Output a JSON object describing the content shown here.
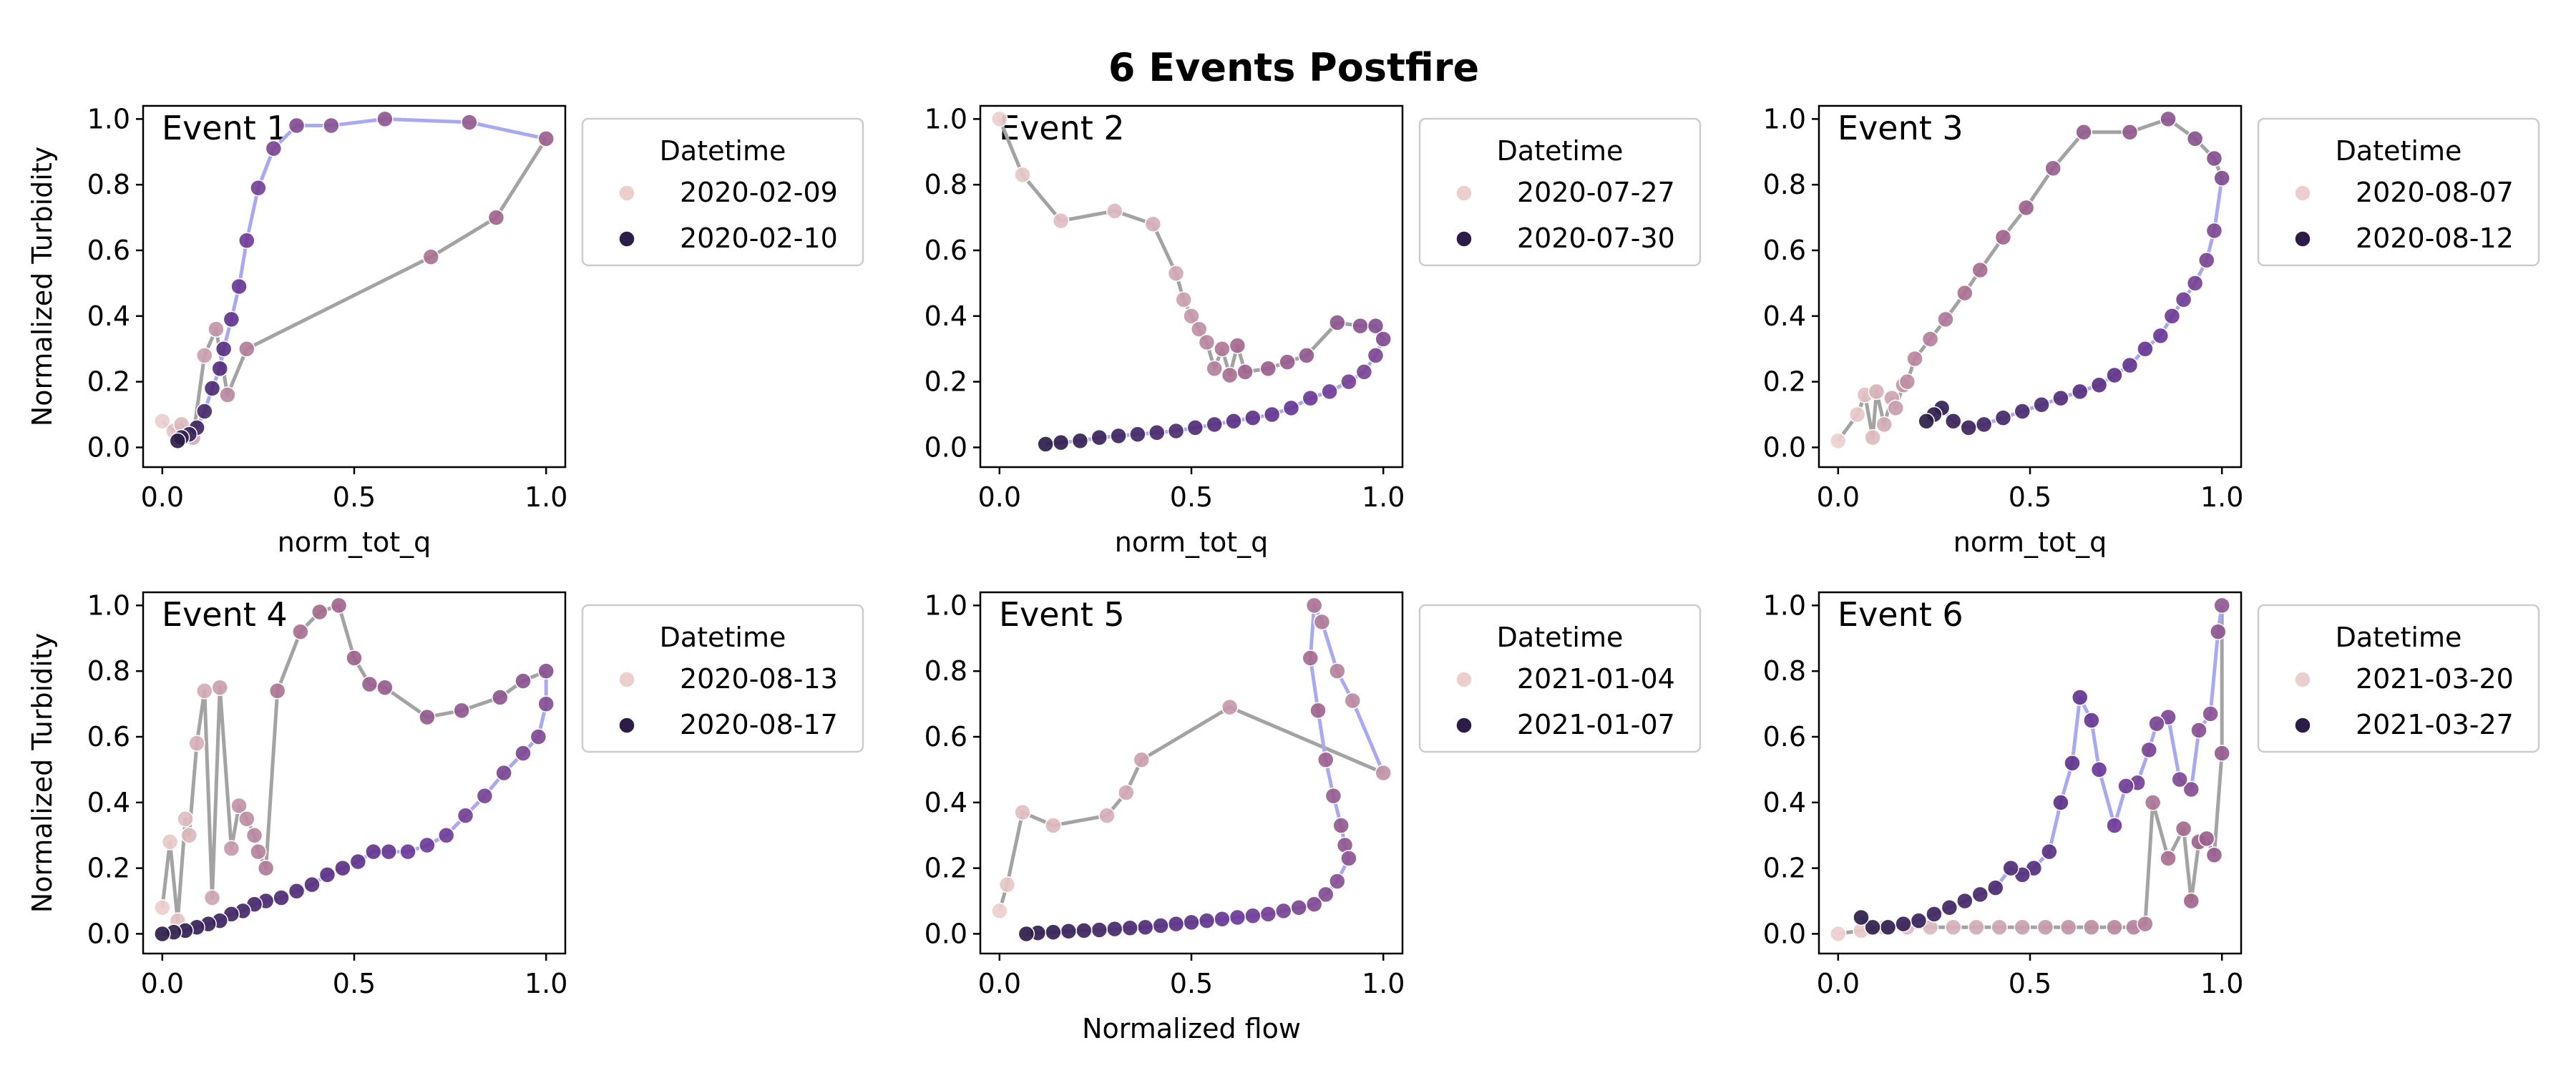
{
  "figure": {
    "title": "6 Events Postfire",
    "legend_title": "Datetime",
    "ylabel": "Normalized Turbidity",
    "xlabel_top": "norm_tot_q",
    "xlabel_bottom": "Normalized flow"
  },
  "colors": {
    "path_rising": "#a9a9f2",
    "path_falling": "#a3a3a3",
    "point_start": "#eccfcd",
    "point_mid": "#a2668c",
    "point_late": "#6a3898",
    "point_end": "#2c1d48"
  },
  "chart_data": [
    {
      "type": "scatter",
      "panel_title": "Event 1",
      "xlabel": "norm_tot_q",
      "ylabel": "Normalized Turbidity",
      "xlim": [
        -0.05,
        1.05
      ],
      "ylim": [
        -0.06,
        1.04
      ],
      "xticks": [
        "0.0",
        "0.5",
        "1.0"
      ],
      "yticks": [
        "0.0",
        "0.2",
        "0.4",
        "0.6",
        "0.8",
        "1.0"
      ],
      "legend": [
        "2020-02-09",
        "2020-02-10"
      ],
      "x": [
        0.0,
        0.03,
        0.05,
        0.08,
        0.11,
        0.14,
        0.17,
        0.22,
        0.7,
        0.87,
        1.0,
        0.8,
        0.58,
        0.44,
        0.35,
        0.29,
        0.25,
        0.22,
        0.2,
        0.18,
        0.16,
        0.15,
        0.13,
        0.11,
        0.09,
        0.07,
        0.05,
        0.04
      ],
      "y": [
        0.08,
        0.05,
        0.07,
        0.03,
        0.28,
        0.36,
        0.16,
        0.3,
        0.58,
        0.7,
        0.94,
        0.99,
        1.0,
        0.98,
        0.98,
        0.91,
        0.79,
        0.63,
        0.49,
        0.39,
        0.3,
        0.24,
        0.18,
        0.11,
        0.06,
        0.04,
        0.03,
        0.02
      ],
      "turn": 10
    },
    {
      "type": "scatter",
      "panel_title": "Event 2",
      "xlabel": "norm_tot_q",
      "ylabel": "",
      "xlim": [
        -0.05,
        1.05
      ],
      "ylim": [
        -0.06,
        1.04
      ],
      "xticks": [
        "0.0",
        "0.5",
        "1.0"
      ],
      "yticks": [
        "0.0",
        "0.2",
        "0.4",
        "0.6",
        "0.8",
        "1.0"
      ],
      "legend": [
        "2020-07-27",
        "2020-07-30"
      ],
      "x": [
        0.0,
        0.06,
        0.16,
        0.3,
        0.4,
        0.46,
        0.48,
        0.5,
        0.52,
        0.54,
        0.56,
        0.58,
        0.6,
        0.62,
        0.64,
        0.7,
        0.75,
        0.8,
        0.88,
        0.94,
        0.98,
        1.0,
        0.98,
        0.95,
        0.91,
        0.86,
        0.81,
        0.76,
        0.71,
        0.66,
        0.61,
        0.56,
        0.51,
        0.46,
        0.41,
        0.36,
        0.31,
        0.26,
        0.21,
        0.16,
        0.12
      ],
      "y": [
        1.0,
        0.83,
        0.69,
        0.72,
        0.68,
        0.53,
        0.45,
        0.4,
        0.36,
        0.32,
        0.24,
        0.3,
        0.22,
        0.31,
        0.23,
        0.24,
        0.26,
        0.28,
        0.38,
        0.37,
        0.37,
        0.33,
        0.28,
        0.23,
        0.2,
        0.17,
        0.15,
        0.12,
        0.1,
        0.09,
        0.08,
        0.07,
        0.06,
        0.05,
        0.045,
        0.04,
        0.035,
        0.03,
        0.02,
        0.015,
        0.01
      ],
      "turn": 21
    },
    {
      "type": "scatter",
      "panel_title": "Event 3",
      "xlabel": "norm_tot_q",
      "ylabel": "",
      "xlim": [
        -0.05,
        1.05
      ],
      "ylim": [
        -0.06,
        1.04
      ],
      "xticks": [
        "0.0",
        "0.5",
        "1.0"
      ],
      "yticks": [
        "0.0",
        "0.2",
        "0.4",
        "0.6",
        "0.8",
        "1.0"
      ],
      "legend": [
        "2020-08-07",
        "2020-08-12"
      ],
      "x": [
        0.0,
        0.05,
        0.07,
        0.09,
        0.1,
        0.12,
        0.14,
        0.15,
        0.17,
        0.18,
        0.2,
        0.24,
        0.28,
        0.33,
        0.37,
        0.43,
        0.49,
        0.56,
        0.64,
        0.76,
        0.86,
        0.93,
        0.98,
        1.0,
        0.98,
        0.96,
        0.93,
        0.9,
        0.87,
        0.84,
        0.8,
        0.76,
        0.72,
        0.68,
        0.63,
        0.58,
        0.53,
        0.48,
        0.43,
        0.38,
        0.34,
        0.3,
        0.27,
        0.25,
        0.23
      ],
      "y": [
        0.02,
        0.1,
        0.16,
        0.03,
        0.17,
        0.07,
        0.15,
        0.12,
        0.19,
        0.2,
        0.27,
        0.33,
        0.39,
        0.47,
        0.54,
        0.64,
        0.73,
        0.85,
        0.96,
        0.96,
        1.0,
        0.94,
        0.88,
        0.82,
        0.66,
        0.57,
        0.5,
        0.45,
        0.4,
        0.34,
        0.3,
        0.25,
        0.22,
        0.19,
        0.17,
        0.15,
        0.13,
        0.11,
        0.09,
        0.07,
        0.06,
        0.08,
        0.12,
        0.1,
        0.08
      ],
      "turn": 23
    },
    {
      "type": "scatter",
      "panel_title": "Event 4",
      "xlabel": "",
      "ylabel": "Normalized Turbidity",
      "xlim": [
        -0.05,
        1.05
      ],
      "ylim": [
        -0.06,
        1.04
      ],
      "xticks": [
        "0.0",
        "0.5",
        "1.0"
      ],
      "yticks": [
        "0.0",
        "0.2",
        "0.4",
        "0.6",
        "0.8",
        "1.0"
      ],
      "legend": [
        "2020-08-13",
        "2020-08-17"
      ],
      "x": [
        0.0,
        0.02,
        0.04,
        0.06,
        0.07,
        0.09,
        0.11,
        0.13,
        0.15,
        0.18,
        0.2,
        0.22,
        0.24,
        0.25,
        0.27,
        0.3,
        0.36,
        0.41,
        0.46,
        0.5,
        0.54,
        0.58,
        0.69,
        0.78,
        0.88,
        0.94,
        1.0,
        1.0,
        0.98,
        0.94,
        0.89,
        0.84,
        0.79,
        0.74,
        0.69,
        0.64,
        0.59,
        0.55,
        0.51,
        0.47,
        0.43,
        0.39,
        0.35,
        0.31,
        0.27,
        0.24,
        0.21,
        0.18,
        0.15,
        0.12,
        0.09,
        0.06,
        0.03,
        0.0
      ],
      "y": [
        0.08,
        0.28,
        0.04,
        0.35,
        0.3,
        0.58,
        0.74,
        0.11,
        0.75,
        0.26,
        0.39,
        0.35,
        0.3,
        0.25,
        0.2,
        0.74,
        0.92,
        0.98,
        1.0,
        0.84,
        0.76,
        0.75,
        0.66,
        0.68,
        0.72,
        0.77,
        0.8,
        0.7,
        0.6,
        0.55,
        0.49,
        0.42,
        0.36,
        0.3,
        0.27,
        0.25,
        0.25,
        0.25,
        0.22,
        0.2,
        0.18,
        0.15,
        0.13,
        0.11,
        0.1,
        0.09,
        0.07,
        0.06,
        0.04,
        0.03,
        0.02,
        0.01,
        0.005,
        0.0
      ],
      "turn": 26
    },
    {
      "type": "scatter",
      "panel_title": "Event 5",
      "xlabel": "Normalized flow",
      "ylabel": "",
      "xlim": [
        -0.05,
        1.05
      ],
      "ylim": [
        -0.06,
        1.04
      ],
      "xticks": [
        "0.0",
        "0.5",
        "1.0"
      ],
      "yticks": [
        "0.0",
        "0.2",
        "0.4",
        "0.6",
        "0.8",
        "1.0"
      ],
      "legend": [
        "2021-01-04",
        "2021-01-07"
      ],
      "x": [
        0.0,
        0.02,
        0.06,
        0.14,
        0.28,
        0.33,
        0.37,
        0.6,
        1.0,
        0.92,
        0.88,
        0.84,
        0.82,
        0.81,
        0.83,
        0.85,
        0.87,
        0.89,
        0.9,
        0.91,
        0.88,
        0.85,
        0.82,
        0.78,
        0.74,
        0.7,
        0.66,
        0.62,
        0.58,
        0.54,
        0.5,
        0.46,
        0.42,
        0.38,
        0.34,
        0.3,
        0.26,
        0.22,
        0.18,
        0.14,
        0.1,
        0.07
      ],
      "y": [
        0.07,
        0.15,
        0.37,
        0.33,
        0.36,
        0.43,
        0.53,
        0.69,
        0.49,
        0.71,
        0.8,
        0.95,
        1.0,
        0.84,
        0.68,
        0.53,
        0.42,
        0.33,
        0.27,
        0.23,
        0.16,
        0.12,
        0.09,
        0.08,
        0.07,
        0.06,
        0.055,
        0.05,
        0.045,
        0.04,
        0.035,
        0.03,
        0.025,
        0.02,
        0.018,
        0.015,
        0.012,
        0.01,
        0.008,
        0.005,
        0.003,
        0.0
      ],
      "turn": 8
    },
    {
      "type": "scatter",
      "panel_title": "Event 6",
      "xlabel": "",
      "ylabel": "",
      "xlim": [
        -0.05,
        1.05
      ],
      "ylim": [
        -0.06,
        1.04
      ],
      "xticks": [
        "0.0",
        "0.5",
        "1.0"
      ],
      "yticks": [
        "0.0",
        "0.2",
        "0.4",
        "0.6",
        "0.8",
        "1.0"
      ],
      "legend": [
        "2021-03-20",
        "2021-03-27"
      ],
      "x": [
        0.0,
        0.06,
        0.12,
        0.18,
        0.24,
        0.3,
        0.36,
        0.42,
        0.48,
        0.54,
        0.6,
        0.66,
        0.72,
        0.77,
        0.8,
        0.82,
        0.86,
        0.9,
        0.92,
        0.94,
        0.96,
        0.98,
        1.0,
        1.0,
        0.99,
        0.97,
        0.94,
        0.92,
        0.89,
        0.86,
        0.83,
        0.81,
        0.78,
        0.75,
        0.72,
        0.68,
        0.66,
        0.63,
        0.61,
        0.58,
        0.55,
        0.51,
        0.48,
        0.45,
        0.41,
        0.37,
        0.33,
        0.29,
        0.25,
        0.21,
        0.17,
        0.13,
        0.09,
        0.06
      ],
      "y": [
        0.0,
        0.01,
        0.02,
        0.02,
        0.02,
        0.02,
        0.02,
        0.02,
        0.02,
        0.02,
        0.02,
        0.02,
        0.02,
        0.02,
        0.03,
        0.4,
        0.23,
        0.32,
        0.1,
        0.28,
        0.29,
        0.24,
        0.55,
        1.0,
        0.92,
        0.67,
        0.62,
        0.44,
        0.47,
        0.66,
        0.64,
        0.56,
        0.46,
        0.45,
        0.33,
        0.5,
        0.65,
        0.72,
        0.52,
        0.4,
        0.25,
        0.2,
        0.18,
        0.2,
        0.14,
        0.12,
        0.1,
        0.08,
        0.06,
        0.04,
        0.03,
        0.02,
        0.02,
        0.05
      ],
      "turn": 23
    }
  ]
}
